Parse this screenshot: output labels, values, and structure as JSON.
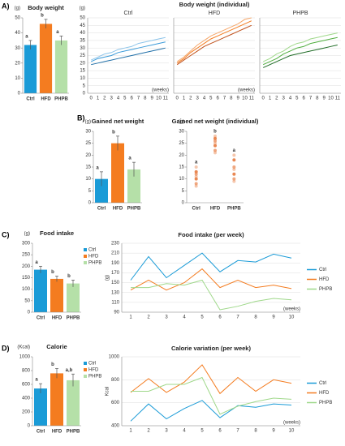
{
  "panel_labels": [
    "A)",
    "B)",
    "C)",
    "D)"
  ],
  "chart_data": [
    {
      "type": "bar",
      "title": "Body weight",
      "y_label": "(g)",
      "categories": [
        "Ctrl",
        "HFD",
        "PHPB"
      ],
      "values": [
        32,
        46,
        35
      ],
      "errors": [
        3,
        3,
        3
      ],
      "annotations": [
        "a",
        "b",
        "a"
      ],
      "colors": [
        "#1a9bd7",
        "#f47c20",
        "#b5e0a8"
      ],
      "ylim": [
        0,
        50
      ],
      "yticks": [
        0,
        10,
        20,
        30,
        40,
        50
      ],
      "grid": false,
      "legend": false
    },
    {
      "type": "line",
      "title": "Body weight (individual)",
      "y_label": "(g)",
      "x_label": "(weeks)",
      "x": [
        0,
        1,
        2,
        3,
        4,
        5,
        6,
        7,
        8,
        9,
        10,
        11
      ],
      "xlim": [
        -0.5,
        11.5
      ],
      "ylim": [
        0,
        50
      ],
      "yticks": [
        0,
        5,
        10,
        15,
        20,
        25,
        30,
        35,
        40,
        45,
        50
      ],
      "grid": true,
      "panels": [
        {
          "title": "Ctrl",
          "series": [
            {
              "color": "#1f6fa8",
              "values": [
                19,
                20,
                21,
                22,
                23,
                24,
                25,
                26,
                27,
                28,
                29,
                30
              ]
            },
            {
              "color": "#3a9ad9",
              "values": [
                21,
                23,
                24,
                25,
                27,
                28,
                29,
                30,
                31,
                32,
                33,
                34
              ]
            },
            {
              "color": "#8cc4ea",
              "values": [
                22,
                24,
                26,
                27,
                29,
                30,
                31,
                33,
                34,
                35,
                36,
                37
              ]
            }
          ]
        },
        {
          "title": "HFD",
          "series": [
            {
              "color": "#c0501a",
              "values": [
                19,
                22,
                25,
                28,
                31,
                33,
                35,
                37,
                39,
                41,
                43,
                45
              ]
            },
            {
              "color": "#f47c20",
              "values": [
                20,
                23,
                27,
                30,
                33,
                36,
                38,
                40,
                42,
                44,
                46,
                48
              ]
            },
            {
              "color": "#f6a76a",
              "values": [
                21,
                24,
                28,
                32,
                35,
                38,
                40,
                42,
                44,
                46,
                49,
                50
              ]
            }
          ]
        },
        {
          "title": "PHPB",
          "series": [
            {
              "color": "#1e6b25",
              "values": [
                17,
                19,
                21,
                23,
                25,
                26,
                27,
                28,
                29,
                30,
                31,
                32
              ]
            },
            {
              "color": "#4fae3e",
              "values": [
                19,
                21,
                23,
                26,
                28,
                30,
                31,
                33,
                34,
                35,
                36,
                37
              ]
            },
            {
              "color": "#9fd88a",
              "values": [
                21,
                23,
                26,
                28,
                31,
                33,
                34,
                36,
                37,
                38,
                39,
                40
              ]
            }
          ]
        }
      ]
    },
    {
      "type": "bar",
      "title": "Gained net weight",
      "y_label": "(g)",
      "categories": [
        "Ctrl",
        "HFD",
        "PHPB"
      ],
      "values": [
        10,
        25,
        14
      ],
      "errors": [
        3,
        3,
        3
      ],
      "annotations": [
        "a",
        "b",
        "a"
      ],
      "colors": [
        "#1a9bd7",
        "#f47c20",
        "#b5e0a8"
      ],
      "ylim": [
        0,
        30
      ],
      "yticks": [
        0,
        5,
        10,
        15,
        20,
        25,
        30
      ],
      "grid": false,
      "legend": false
    },
    {
      "type": "scatter",
      "title": "Gained net weight (individual)",
      "y_label": "(g)",
      "categories": [
        "Ctrl",
        "HFD",
        "PHPB"
      ],
      "values": [
        [
          7,
          8,
          10,
          11,
          12,
          13,
          15
        ],
        [
          21,
          22,
          24,
          25,
          26,
          27,
          28
        ],
        [
          9,
          10,
          12,
          14,
          15,
          18,
          20
        ]
      ],
      "annotations": [
        "a",
        "b",
        "a"
      ],
      "color": "#e8824a",
      "ylim": [
        0,
        30
      ],
      "yticks": [
        0,
        5,
        10,
        15,
        20,
        25,
        30
      ],
      "grid": false
    },
    {
      "type": "bar",
      "title": "Food intake",
      "y_label": "(g)",
      "categories": [
        "Ctrl",
        "HFD",
        "PHPB"
      ],
      "values": [
        185,
        145,
        125
      ],
      "errors": [
        15,
        12,
        15
      ],
      "annotations": [
        "a",
        "b",
        "b"
      ],
      "colors": [
        "#1a9bd7",
        "#f47c20",
        "#b5e0a8"
      ],
      "ylim": [
        0,
        300
      ],
      "yticks": [
        0,
        50,
        100,
        150,
        200,
        250,
        300
      ],
      "grid": false,
      "legend": true
    },
    {
      "type": "line",
      "title": "Food intake (per week)",
      "y_label": "(g)",
      "x_label": "(weeks)",
      "x": [
        1,
        2,
        3,
        4,
        5,
        6,
        7,
        8,
        9,
        10
      ],
      "xlim": [
        0.5,
        10.5
      ],
      "ylim": [
        90,
        230
      ],
      "yticks": [
        90,
        110,
        130,
        150,
        170,
        190,
        210,
        230
      ],
      "grid": true,
      "legend": "right",
      "series": [
        {
          "name": "Ctrl",
          "color": "#1a9bd7",
          "values": [
            155,
            203,
            160,
            185,
            210,
            172,
            195,
            192,
            208,
            200
          ]
        },
        {
          "name": "HFD",
          "color": "#f47c20",
          "values": [
            135,
            155,
            135,
            150,
            178,
            140,
            155,
            140,
            145,
            138
          ]
        },
        {
          "name": "PHPB",
          "color": "#9fd88a",
          "values": [
            140,
            140,
            148,
            145,
            155,
            95,
            102,
            112,
            118,
            115
          ]
        }
      ]
    },
    {
      "type": "bar",
      "title": "Calorie",
      "y_label": "(Kcal)",
      "categories": [
        "Ctrl",
        "HFD",
        "PHPB"
      ],
      "values": [
        540,
        760,
        660
      ],
      "errors": [
        70,
        70,
        90
      ],
      "annotations": [
        "a",
        "b",
        "a,b"
      ],
      "colors": [
        "#1a9bd7",
        "#f47c20",
        "#b5e0a8"
      ],
      "ylim": [
        0,
        1000
      ],
      "yticks": [
        0,
        200,
        400,
        600,
        800,
        1000
      ],
      "grid": false,
      "legend": true
    },
    {
      "type": "line",
      "title": "Calorie variation (per week)",
      "y_label": "Kcal",
      "x_label": "(weeks)",
      "x": [
        1,
        2,
        3,
        4,
        5,
        6,
        7,
        8,
        9,
        10
      ],
      "xlim": [
        0.5,
        10.5
      ],
      "ylim": [
        400,
        1000
      ],
      "yticks": [
        400,
        600,
        800,
        1000
      ],
      "grid": true,
      "legend": "right",
      "series": [
        {
          "name": "Ctrl",
          "color": "#1a9bd7",
          "values": [
            440,
            590,
            460,
            550,
            620,
            470,
            575,
            560,
            590,
            580
          ]
        },
        {
          "name": "HFD",
          "color": "#f47c20",
          "values": [
            690,
            810,
            690,
            780,
            930,
            680,
            820,
            700,
            800,
            770
          ]
        },
        {
          "name": "PHPB",
          "color": "#9fd88a",
          "values": [
            700,
            700,
            760,
            760,
            820,
            500,
            570,
            610,
            640,
            630
          ]
        }
      ]
    }
  ]
}
